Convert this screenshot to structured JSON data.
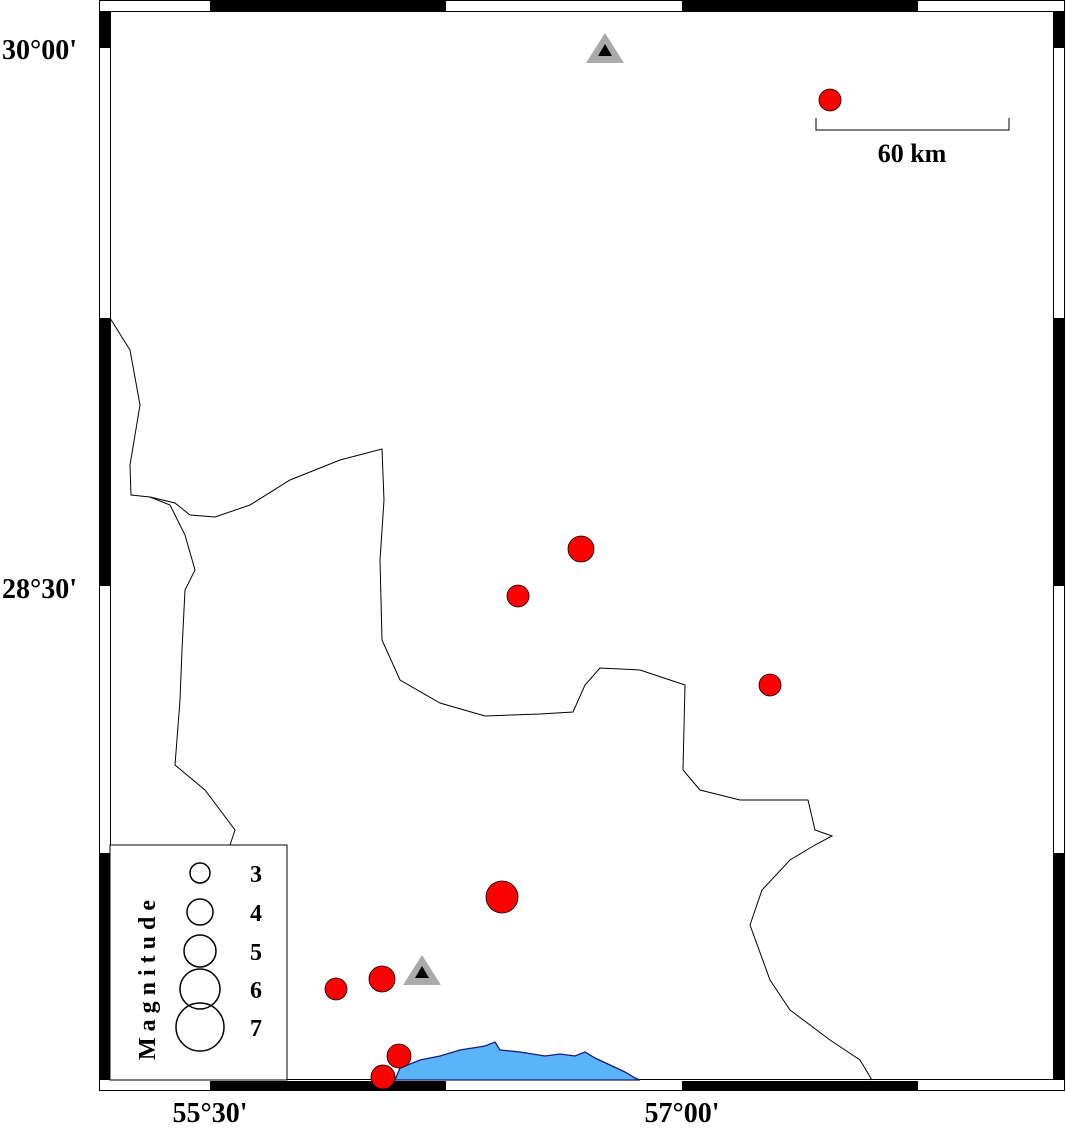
{
  "map": {
    "lat_labels": [
      "30°00'",
      "28°30'"
    ],
    "lon_labels": [
      "55°30'",
      "57°00'"
    ],
    "scale_bar": {
      "label": "60 km",
      "length_km": 60
    },
    "legend": {
      "title": "Magnitude",
      "sizes": [
        "3",
        "4",
        "5",
        "6",
        "7"
      ]
    },
    "colors": {
      "event_fill": "#ff0000",
      "station_outer": "#aaaaaa",
      "station_inner": "#000000",
      "water": "#5ab4f7",
      "coast": "#1a1a7a",
      "border": "#000000"
    },
    "symbols": {
      "event": "red-circle",
      "station": "triangle-icon"
    }
  }
}
